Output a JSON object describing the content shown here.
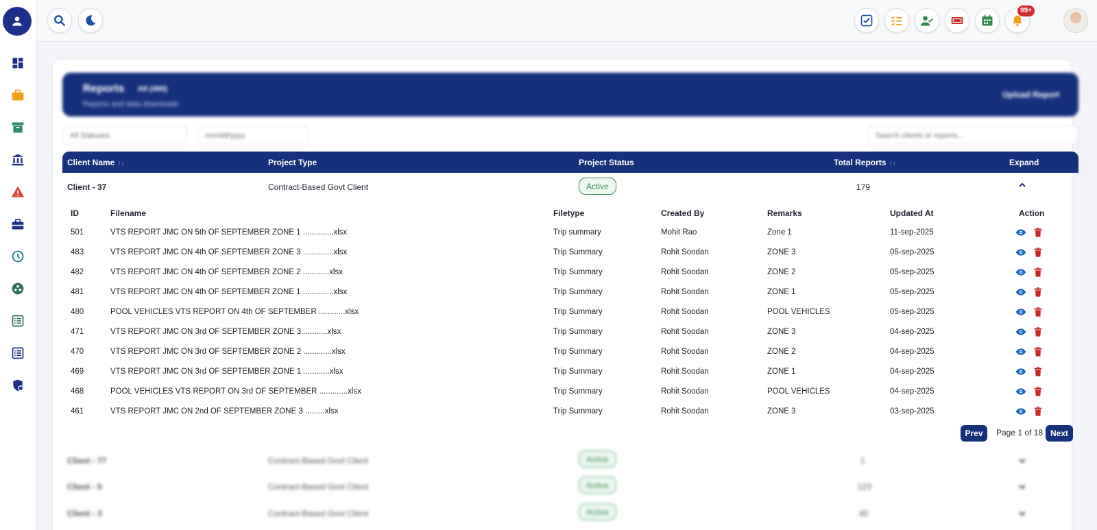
{
  "colors": {
    "primary": "#16317c",
    "active": "#2f8a4e",
    "danger": "#c62828",
    "view": "#1565c0"
  },
  "sidebar": {
    "items": [
      {
        "icon": "dashboard-icon",
        "color": "#1d2f8a"
      },
      {
        "icon": "briefcase-icon",
        "color": "#f2a01c"
      },
      {
        "icon": "archive-icon",
        "color": "#2f8a6e"
      },
      {
        "icon": "bank-icon",
        "color": "#1d2f8a"
      },
      {
        "icon": "warning-icon",
        "color": "#d9483b"
      },
      {
        "icon": "toolbox-icon",
        "color": "#1d2f8a"
      },
      {
        "icon": "clock-icon",
        "color": "#1a7d8c"
      },
      {
        "icon": "group-icon",
        "color": "#2f6e62"
      },
      {
        "icon": "list-icon",
        "color": "#2f6e62"
      },
      {
        "icon": "list-alt-icon",
        "color": "#1d2f8a"
      },
      {
        "icon": "shield-icon",
        "color": "#1d2f8a"
      }
    ]
  },
  "topbar": {
    "notification_count": "99+"
  },
  "hero": {
    "title": "Reports",
    "count": "All (490)",
    "subtitle": "Reports and data downloads",
    "upload_label": "Upload Report"
  },
  "filters": {
    "status_value": "All Statuses",
    "date_placeholder": "mm/dd/yyyy",
    "search_placeholder": "Search clients or reports..."
  },
  "table": {
    "headers": {
      "client_name": "Client Name",
      "project_type": "Project Type",
      "project_status": "Project Status",
      "total_reports": "Total Reports",
      "expand": "Expand"
    },
    "sort_glyph": "↑↓",
    "expanded_client": {
      "name": "Client - 37",
      "project_type": "Contract-Based Govt Client",
      "status": "Active",
      "total_reports": "179"
    },
    "sub_headers": {
      "id": "ID",
      "filename": "Filename",
      "filetype": "Filetype",
      "created_by": "Created By",
      "remarks": "Remarks",
      "updated_at": "Updated At",
      "action": "Action"
    },
    "reports": [
      {
        "id": "501",
        "filename": "VTS REPORT JMC ON 5th OF SEPTEMBER ZONE 1 ..............xlsx",
        "filetype": "Trip summary",
        "created_by": "Mohit Rao",
        "remarks": "Zone 1",
        "updated_at": "11-sep-2025"
      },
      {
        "id": "483",
        "filename": "VTS REPORT JMC ON 4th OF SEPTEMBER ZONE 3 ..............xlsx",
        "filetype": "Trip Summary",
        "created_by": "Rohit Soodan",
        "remarks": "ZONE 3",
        "updated_at": "05-sep-2025"
      },
      {
        "id": "482",
        "filename": "VTS REPORT JMC ON 4th OF SEPTEMBER ZONE 2 ............xlsx",
        "filetype": "Trip Summary",
        "created_by": "Rohit Soodan",
        "remarks": "ZONE 2",
        "updated_at": "05-sep-2025"
      },
      {
        "id": "481",
        "filename": "VTS REPORT JMC ON 4th OF SEPTEMBER ZONE 1 ..............xlsx",
        "filetype": "Trip Summary",
        "created_by": "Rohit Soodan",
        "remarks": "ZONE 1",
        "updated_at": "05-sep-2025"
      },
      {
        "id": "480",
        "filename": "POOL VEHICLES VTS REPORT ON 4th OF SEPTEMBER ............xlsx",
        "filetype": "Trip Summary",
        "created_by": "Rohit Soodan",
        "remarks": "POOL VEHICLES",
        "updated_at": "05-sep-2025"
      },
      {
        "id": "471",
        "filename": "VTS REPORT JMC ON 3rd OF SEPTEMBER ZONE 3............xlsx",
        "filetype": "Trip Summary",
        "created_by": "Rohit Soodan",
        "remarks": "ZONE 3",
        "updated_at": "04-sep-2025"
      },
      {
        "id": "470",
        "filename": "VTS REPORT JMC ON 3rd OF SEPTEMBER ZONE 2 .............xlsx",
        "filetype": "Trip Summary",
        "created_by": "Rohit Soodan",
        "remarks": "ZONE 2",
        "updated_at": "04-sep-2025"
      },
      {
        "id": "469",
        "filename": "VTS REPORT JMC ON 3rd OF SEPTEMBER ZONE 1 ............xlsx",
        "filetype": "Trip Summary",
        "created_by": "Rohit Soodan",
        "remarks": "ZONE 1",
        "updated_at": "04-sep-2025"
      },
      {
        "id": "468",
        "filename": "POOL VEHICLES VTS REPORT ON 3rd OF SEPTEMBER .............xlsx",
        "filetype": "Trip Summary",
        "created_by": "Rohit Soodan",
        "remarks": "POOL VEHICLES",
        "updated_at": "04-sep-2025"
      },
      {
        "id": "461",
        "filename": "VTS REPORT JMC ON 2nd OF SEPTEMBER ZONE 3 .........xlsx",
        "filetype": "Trip Summary",
        "created_by": "Rohit Soodan",
        "remarks": "ZONE 3",
        "updated_at": "03-sep-2025"
      }
    ],
    "pagination": {
      "prev_label": "Prev",
      "page_label": "Page 1 of 18",
      "next_label": "Next"
    },
    "other_clients": [
      {
        "name": "Client - 77",
        "project_type": "Contract-Based Govt Client",
        "status": "Active",
        "total_reports": "1"
      },
      {
        "name": "Client - 5",
        "project_type": "Contract-Based Govt Client",
        "status": "Active",
        "total_reports": "123"
      },
      {
        "name": "Client - 3",
        "project_type": "Contract-Based Govt Client",
        "status": "Active",
        "total_reports": "40"
      }
    ]
  }
}
